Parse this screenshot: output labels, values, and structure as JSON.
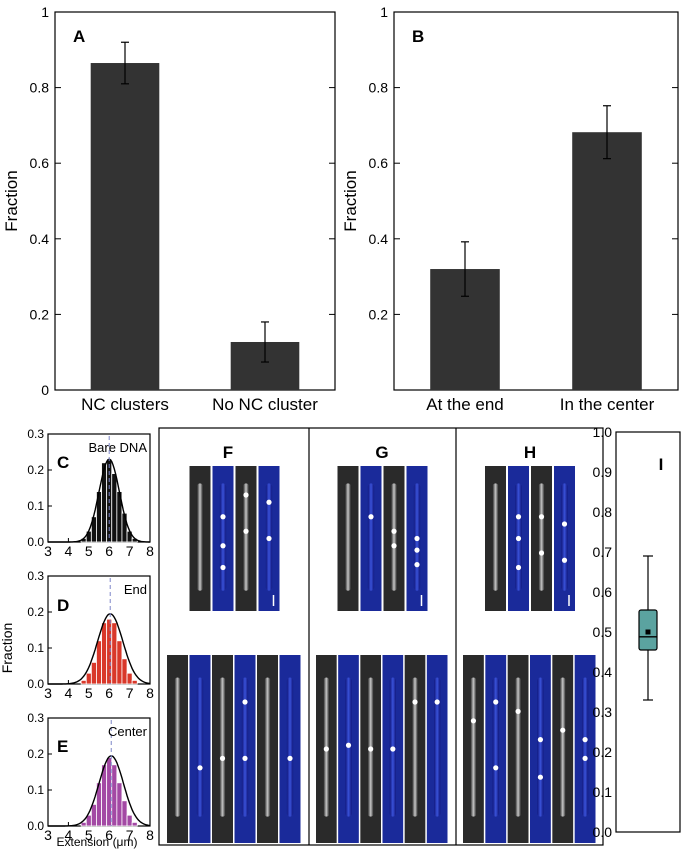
{
  "chart_data": [
    {
      "panel": "A",
      "type": "bar",
      "categories": [
        "NC clusters",
        "No NC cluster"
      ],
      "values": [
        0.865,
        0.127
      ],
      "errors": [
        0.055,
        0.053
      ],
      "ylabel": "Fraction",
      "ylim": [
        0,
        1
      ],
      "yticks": [
        "0",
        "0.2",
        "0.4",
        "0.6",
        "0.8",
        "1"
      ],
      "bar_color": "#333333"
    },
    {
      "panel": "B",
      "type": "bar",
      "categories": [
        "At the end",
        "In the center"
      ],
      "values": [
        0.32,
        0.682
      ],
      "errors": [
        0.072,
        0.07
      ],
      "ylabel": "Fraction",
      "ylim": [
        0,
        1
      ],
      "yticks": [
        "0.2",
        "0.4",
        "0.6",
        "0.8",
        "1"
      ],
      "bar_color": "#333333"
    },
    {
      "panel": "C",
      "type": "bar",
      "annotation": "Bare DNA",
      "x": [
        4.75,
        5.0,
        5.25,
        5.5,
        5.75,
        6.0,
        6.25,
        6.5,
        6.75,
        7.0,
        7.25
      ],
      "values": [
        0.01,
        0.03,
        0.07,
        0.14,
        0.22,
        0.23,
        0.19,
        0.14,
        0.08,
        0.03,
        0.01
      ],
      "fit": {
        "mean": 6.0,
        "sd": 0.5,
        "peak": 0.23
      },
      "xlim": [
        3,
        8
      ],
      "ylim": [
        0,
        0.3
      ],
      "xticks": [
        "3",
        "4",
        "5",
        "6",
        "7",
        "8"
      ],
      "yticks": [
        "0.0",
        "0.1",
        "0.2",
        "0.3"
      ],
      "bar_color": "#111111"
    },
    {
      "panel": "D",
      "type": "bar",
      "annotation": "End",
      "x": [
        4.75,
        5.0,
        5.25,
        5.5,
        5.75,
        6.0,
        6.25,
        6.5,
        6.75,
        7.0,
        7.25
      ],
      "values": [
        0.01,
        0.03,
        0.06,
        0.12,
        0.17,
        0.18,
        0.17,
        0.12,
        0.07,
        0.03,
        0.01
      ],
      "fit": {
        "mean": 6.05,
        "sd": 0.62,
        "peak": 0.195
      },
      "xlim": [
        3,
        8
      ],
      "ylim": [
        0,
        0.3
      ],
      "xticks": [
        "3",
        "4",
        "5",
        "6",
        "7",
        "8"
      ],
      "yticks": [
        "0.0",
        "0.1",
        "0.2",
        "0.3"
      ],
      "bar_color": "#d9382a"
    },
    {
      "panel": "E",
      "type": "bar",
      "annotation": "Center",
      "x": [
        4.75,
        5.0,
        5.25,
        5.5,
        5.75,
        6.0,
        6.25,
        6.5,
        6.75,
        7.0,
        7.25
      ],
      "values": [
        0.01,
        0.03,
        0.06,
        0.12,
        0.17,
        0.19,
        0.17,
        0.12,
        0.07,
        0.03,
        0.01
      ],
      "fit": {
        "mean": 6.1,
        "sd": 0.6,
        "peak": 0.195
      },
      "xlim": [
        3,
        8
      ],
      "ylim": [
        0,
        0.3
      ],
      "xticks": [
        "3",
        "4",
        "5",
        "6",
        "7",
        "8"
      ],
      "yticks": [
        "0.0",
        "0.1",
        "0.2",
        "0.3"
      ],
      "bar_color": "#a349a4"
    },
    {
      "panel": "I",
      "type": "box",
      "ylim": [
        0,
        1
      ],
      "yticks": [
        "0.0",
        "0.1",
        "0.2",
        "0.3",
        "0.4",
        "0.5",
        "0.6",
        "0.7",
        "0.8",
        "0.9",
        "1.0"
      ],
      "box": {
        "whisker_low": 0.33,
        "q1": 0.455,
        "median": 0.488,
        "mean": 0.5,
        "q3": 0.555,
        "whisker_high": 0.69
      },
      "box_color": "#5ba3a0"
    }
  ],
  "labels": {
    "A": "A",
    "B": "B",
    "C": "C",
    "D": "D",
    "E": "E",
    "F": "F",
    "G": "G",
    "H": "H",
    "I": "I",
    "fraction": "Fraction",
    "extension": "Extension (μm)"
  },
  "images": [
    {
      "panel": "F",
      "rows": [
        2,
        3
      ]
    },
    {
      "panel": "G",
      "rows": [
        2,
        3
      ]
    },
    {
      "panel": "H",
      "rows": [
        2,
        3
      ]
    }
  ],
  "colors": {
    "bar": "#333333",
    "red": "#d9382a",
    "purple": "#a349a4",
    "teal": "#5ba3a0",
    "micro_gray": "#2a2a2a",
    "micro_blue": "#1a2a9a"
  }
}
